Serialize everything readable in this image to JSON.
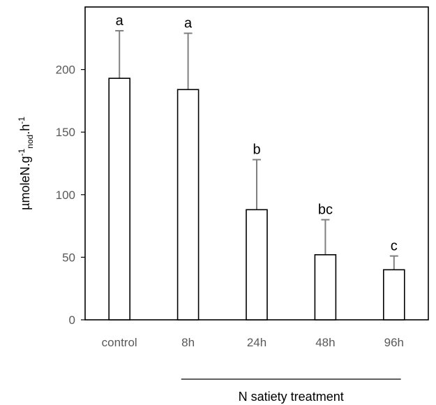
{
  "chart_data": {
    "type": "bar",
    "categories": [
      "control",
      "8h",
      "24h",
      "48h",
      "96h"
    ],
    "values": [
      193,
      184,
      88,
      52,
      40
    ],
    "error_upper": [
      231,
      229,
      128,
      80,
      51
    ],
    "significance": [
      "a",
      "a",
      "b",
      "bc",
      "c"
    ],
    "ylim": [
      0,
      250
    ],
    "yticks": [
      0,
      50,
      100,
      150,
      200
    ],
    "ylabel": {
      "base": "µmoleN.g",
      "sup1": "-1",
      "sub": "nod",
      "mid": ".h",
      "sup2": "-1"
    },
    "group_label": "N satiety treatment",
    "group_categories": [
      "8h",
      "24h",
      "48h",
      "96h"
    ],
    "grid": false,
    "bar_fill": "#ffffff",
    "bar_stroke": "#000000",
    "error_color": "#808080"
  }
}
